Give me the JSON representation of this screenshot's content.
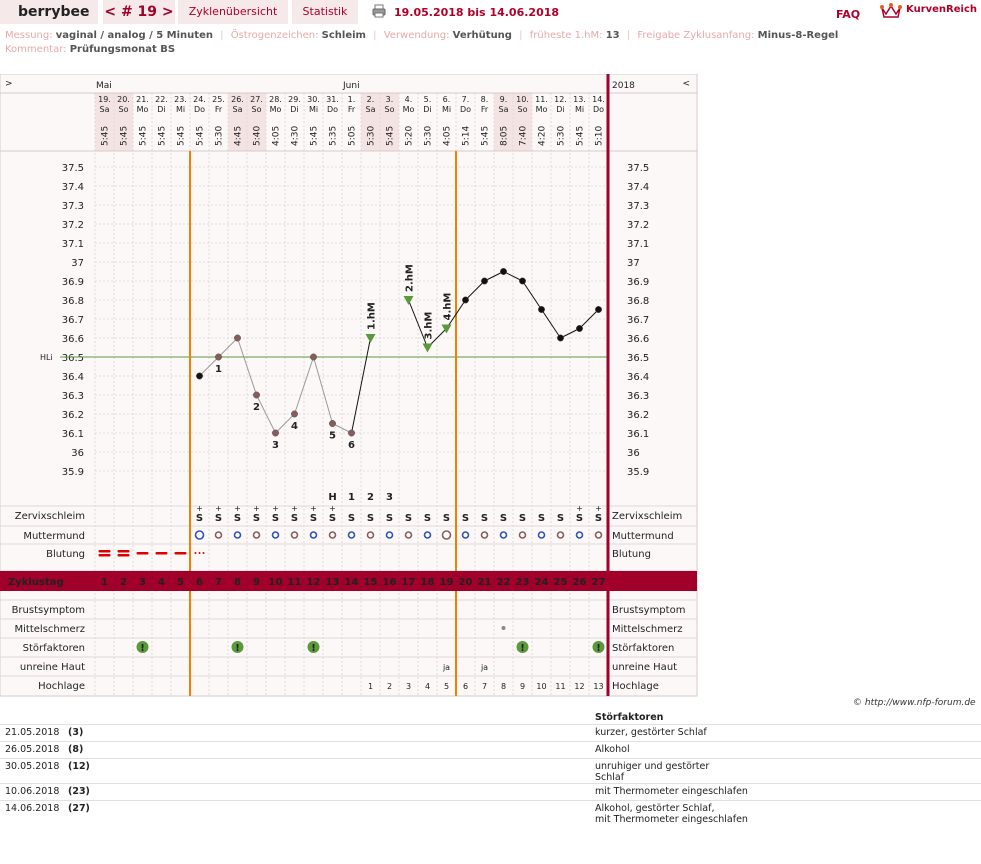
{
  "header": {
    "user": "berrybee",
    "cycle": "< # 19 >",
    "tabs": [
      "Zyklenübersicht",
      "Statistik"
    ],
    "date_range": "19.05.2018 bis 14.06.2018",
    "faq": "FAQ",
    "logo": "KurvenReich"
  },
  "meta": {
    "messung_k": "Messung:",
    "messung_v": "vaginal / analog / 5 Minuten",
    "oest_k": "Östrogenzeichen:",
    "oest_v": "Schleim",
    "verw_k": "Verwendung:",
    "verw_v": "Verhütung",
    "hm_k": "früheste 1.hM:",
    "hm_v": "13",
    "frei_k": "Freigabe Zyklusanfang:",
    "frei_v": "Minus-8-Regel",
    "komm_k": "Kommentar:",
    "komm_v": "Prüfungsmonat BS"
  },
  "chart_data": {
    "type": "line",
    "nav_left": ">",
    "nav_right": "<",
    "year": "2018",
    "months": [
      {
        "label": "Mai",
        "day": 1
      },
      {
        "label": "Juni",
        "day": 14
      }
    ],
    "dates": [
      "19.",
      "20.",
      "21.",
      "22.",
      "23.",
      "24.",
      "25.",
      "26.",
      "27.",
      "28.",
      "29.",
      "30.",
      "31.",
      "1.",
      "2.",
      "3.",
      "4.",
      "5.",
      "6.",
      "7.",
      "8.",
      "9.",
      "10.",
      "11.",
      "12.",
      "13.",
      "14."
    ],
    "weekdays": [
      "Sa",
      "So",
      "Mo",
      "Di",
      "Mi",
      "Do",
      "Fr",
      "Sa",
      "So",
      "Mo",
      "Di",
      "Mi",
      "Do",
      "Fr",
      "Sa",
      "So",
      "Mo",
      "Di",
      "Mi",
      "Do",
      "Fr",
      "Sa",
      "So",
      "Mo",
      "Di",
      "Mi",
      "Do"
    ],
    "times": [
      "5:45",
      "5:45",
      "5:45",
      "5:45",
      "5:45",
      "5:45",
      "5:30",
      "4:45",
      "5:40",
      "4:05",
      "4:30",
      "5:45",
      "5:35",
      "5:05",
      "5:30",
      "5:45",
      "5:20",
      "5:30",
      "4:05",
      "5:14",
      "5:45",
      "8:05",
      "7:40",
      "4:20",
      "5:30",
      "5:45",
      "5:10"
    ],
    "weekend": [
      true,
      true,
      false,
      false,
      false,
      false,
      false,
      true,
      true,
      false,
      false,
      false,
      false,
      false,
      true,
      true,
      false,
      false,
      false,
      false,
      false,
      true,
      true,
      false,
      false,
      false,
      false
    ],
    "yticks": [
      "37.5",
      "37.4",
      "37.3",
      "37.2",
      "37.1",
      "37",
      "36.9",
      "36.8",
      "36.7",
      "36.6",
      "36.5",
      "36.4",
      "36.3",
      "36.2",
      "36.1",
      "36",
      "35.9"
    ],
    "ylim": [
      35.9,
      37.5
    ],
    "coverline": {
      "label": "HLi",
      "value": 36.5
    },
    "temps": [
      null,
      null,
      null,
      null,
      null,
      36.4,
      36.5,
      36.6,
      36.3,
      36.1,
      36.2,
      36.5,
      36.15,
      36.1,
      36.6,
      null,
      36.8,
      36.55,
      36.65,
      36.8,
      36.9,
      36.95,
      36.9,
      36.75,
      36.6,
      36.65,
      36.75
    ],
    "temp_labels": [
      {
        "day": 7,
        "text": "1"
      },
      {
        "day": 9,
        "text": "2"
      },
      {
        "day": 10,
        "text": "3"
      },
      {
        "day": 11,
        "text": "4"
      },
      {
        "day": 13,
        "text": "5"
      },
      {
        "day": 14,
        "text": "6"
      }
    ],
    "hm_labels": [
      {
        "day": 15,
        "text": "1.hM"
      },
      {
        "day": 17,
        "text": "2.hM"
      },
      {
        "day": 18,
        "text": "3.hM"
      },
      {
        "day": 19,
        "text": "4.hM"
      }
    ],
    "peak_labels": [
      {
        "day": 13,
        "text": "H"
      },
      {
        "day": 14,
        "text": "1"
      },
      {
        "day": 15,
        "text": "2"
      },
      {
        "day": 16,
        "text": "3"
      }
    ],
    "cervix": [
      "",
      "",
      "",
      "",
      "",
      "S+",
      "S+",
      "S+",
      "S+",
      "S+",
      "S+",
      "S+",
      "S+",
      "S",
      "S",
      "S",
      "S",
      "S",
      "S",
      "S",
      "S",
      "S",
      "S",
      "S",
      "S",
      "S+",
      "S+"
    ],
    "bleeding": [
      "heavy",
      "heavy",
      "medium",
      "medium",
      "medium",
      "spot",
      "",
      "",
      "",
      "",
      "",
      "",
      "",
      "",
      "",
      "",
      "",
      "",
      "",
      "",
      "",
      "",
      "",
      "",
      "",
      "",
      ""
    ],
    "cycle_days": [
      "1",
      "2",
      "3",
      "4",
      "5",
      "6",
      "7",
      "8",
      "9",
      "10",
      "11",
      "12",
      "13",
      "14",
      "15",
      "16",
      "17",
      "18",
      "19",
      "20",
      "21",
      "22",
      "23",
      "24",
      "25",
      "26",
      "27"
    ],
    "unreine_haut": {
      "18": "ja",
      "20": "ja"
    },
    "hochlage": [
      "1",
      "2",
      "3",
      "4",
      "5",
      "6",
      "7",
      "8",
      "9",
      "10",
      "11",
      "12",
      "13"
    ],
    "row_labels": {
      "zervix": "Zervixschleim",
      "mutter": "Muttermund",
      "blutung": "Blutung",
      "zyklus": "Zyklustag",
      "brust": "Brustsymptom",
      "mittel": "Mittelschmerz",
      "stoer": "Störfaktoren",
      "haut": "unreine Haut",
      "hoch": "Hochlage"
    },
    "colors": {
      "accent": "#a0002a",
      "orange": "#f08000",
      "green": "#5a9a3a",
      "pink": "#f3e3e3"
    }
  },
  "footer": {
    "copyright": "© http://www.nfp-forum.de"
  },
  "notes": {
    "heading": "Störfaktoren",
    "rows": [
      {
        "date": "21.05.2018",
        "day": "(3)",
        "text": "kurzer, gestörter Schlaf"
      },
      {
        "date": "26.05.2018",
        "day": "(8)",
        "text": "Alkohol"
      },
      {
        "date": "30.05.2018",
        "day": "(12)",
        "text": "unruhiger und gestörter\nSchlaf"
      },
      {
        "date": "10.06.2018",
        "day": "(23)",
        "text": "mit Thermometer eingeschlafen"
      },
      {
        "date": "14.06.2018",
        "day": "(27)",
        "text": "Alkohol, gestörter Schlaf,\nmit Thermometer eingeschlafen"
      }
    ]
  }
}
